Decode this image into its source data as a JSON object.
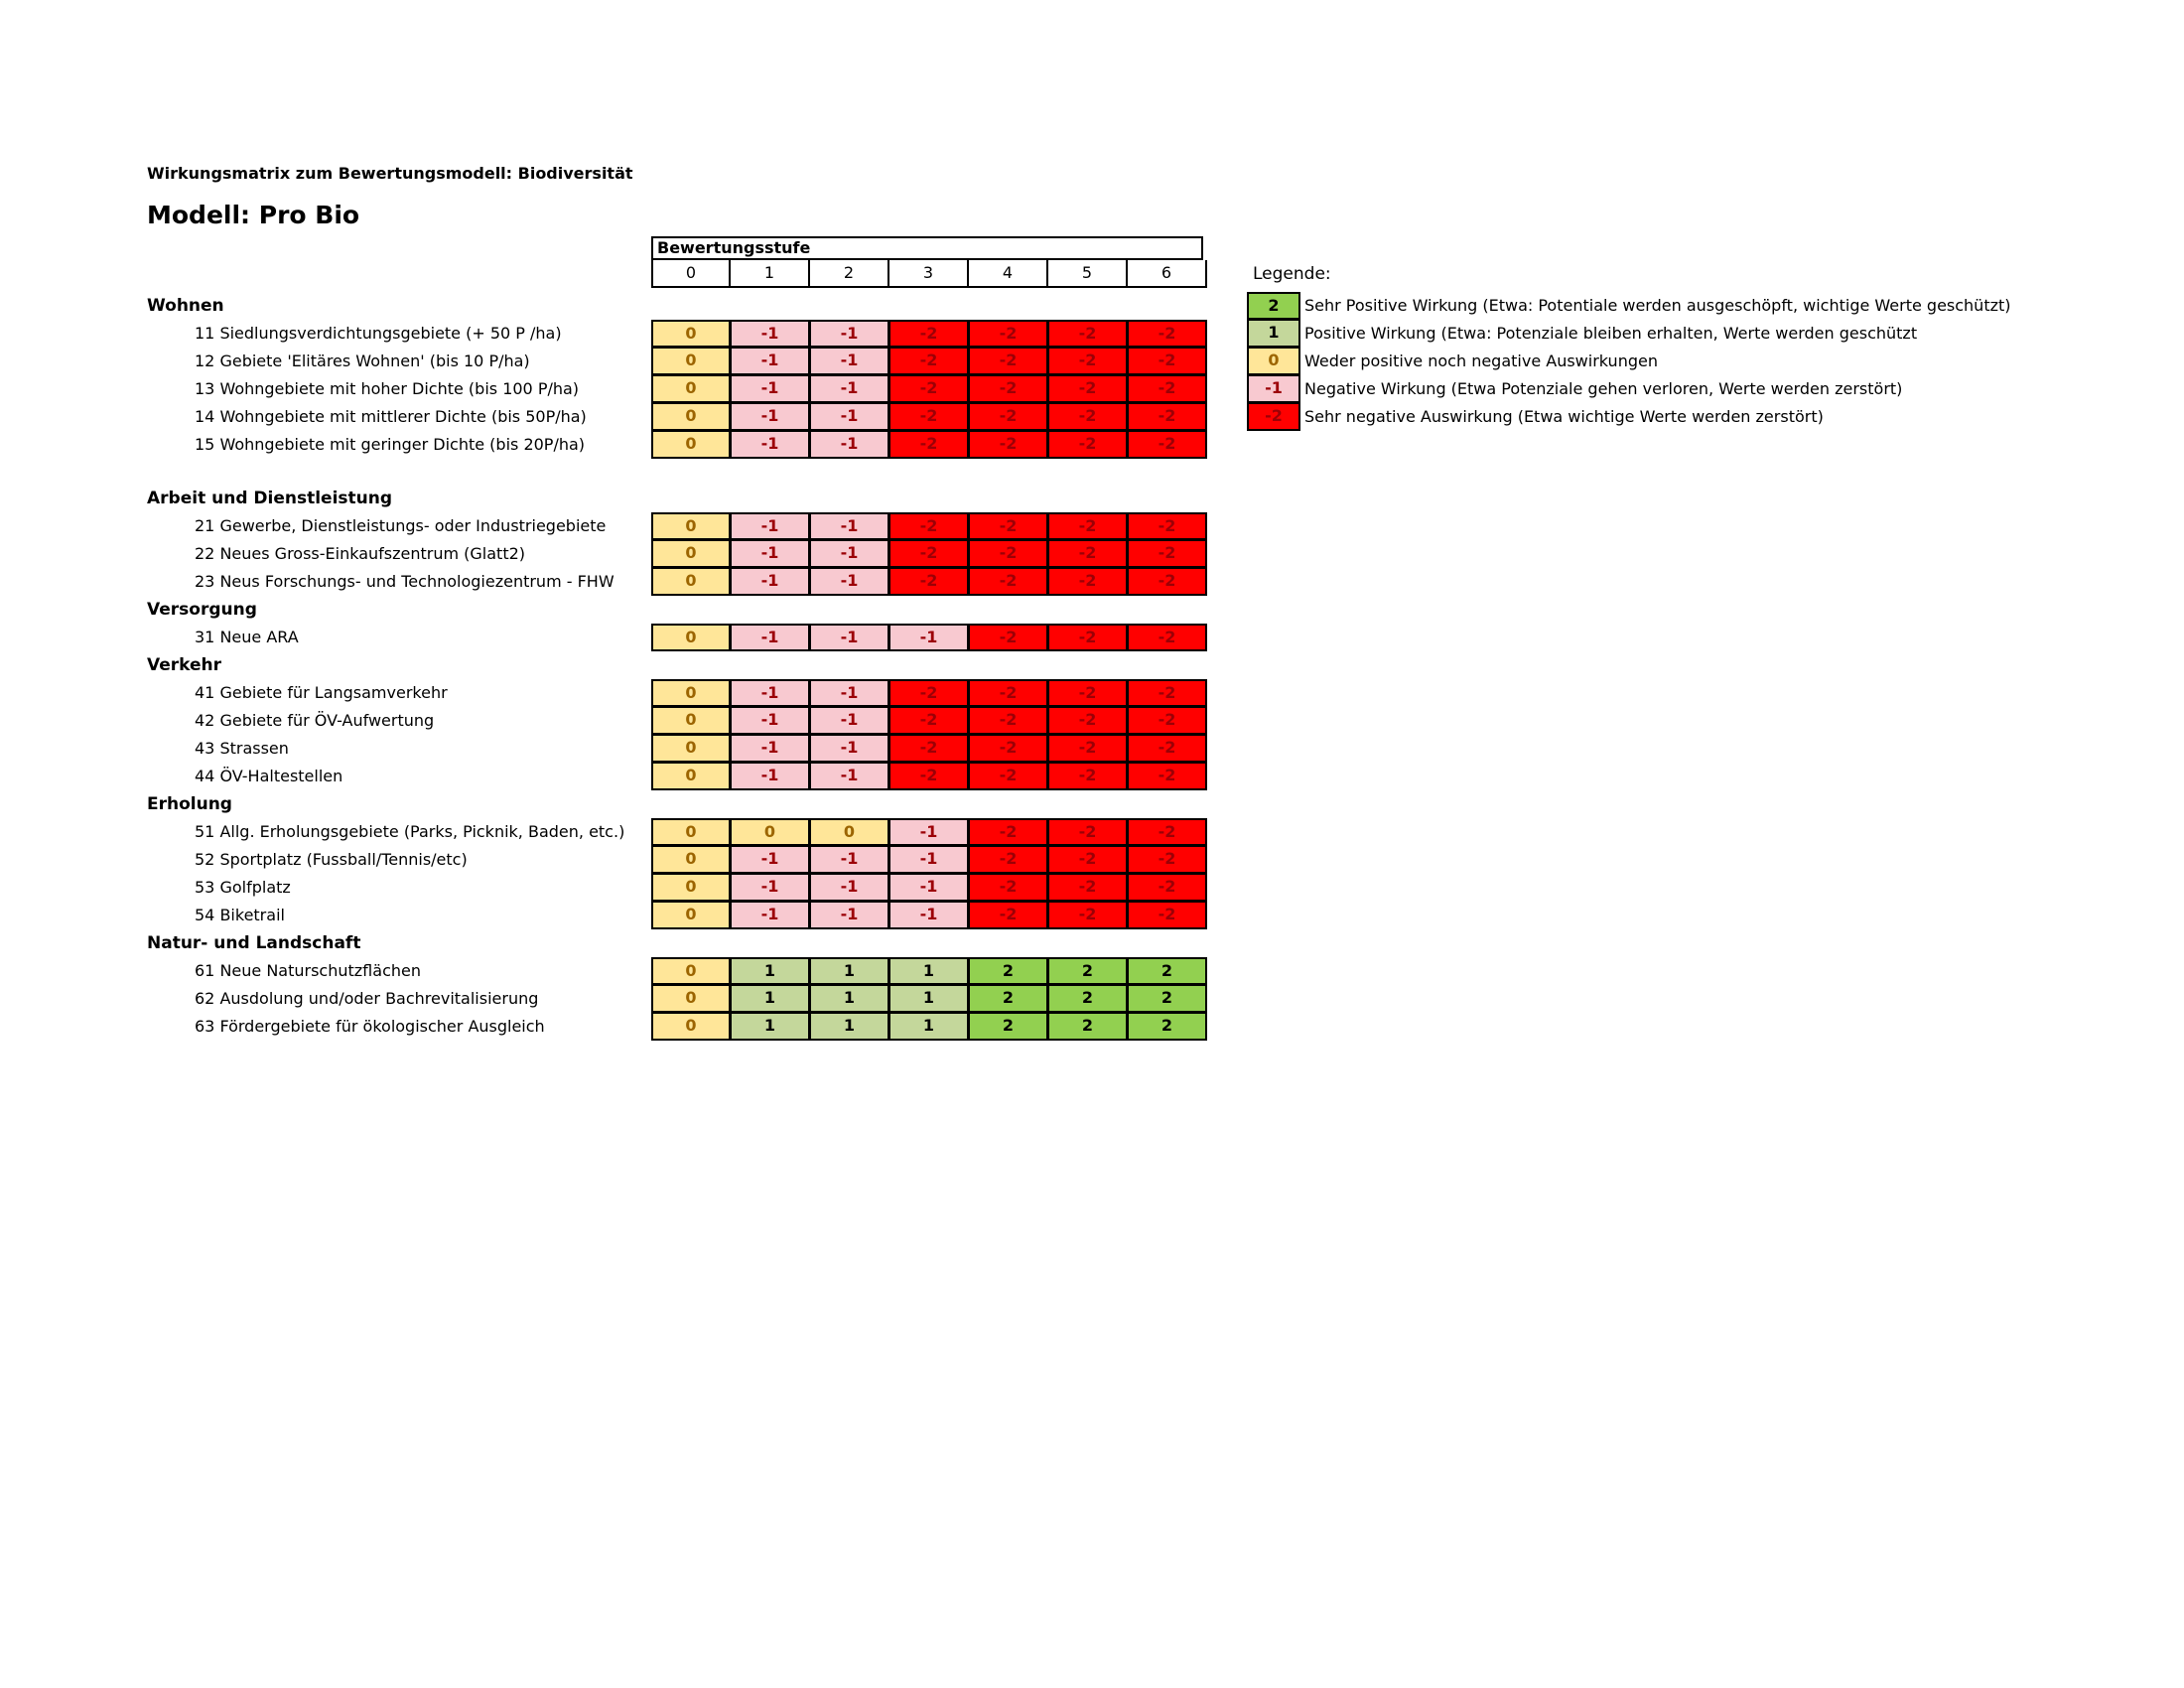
{
  "title": "Wirkungsmatrix zum Bewertungsmodell: Biodiversität",
  "model": "Modell: Pro Bio",
  "header_label": "Bewertungsstufe",
  "columns": [
    "0",
    "1",
    "2",
    "3",
    "4",
    "5",
    "6"
  ],
  "colors": {
    "2": "#92d050",
    "1": "#c4d79b",
    "0": "#ffe699",
    "-1": "#f8c9d0",
    "-2": "#ff0000",
    "text_2": "#000000",
    "text_1": "#000000",
    "text_0": "#9c6500",
    "text_-1": "#9c0006",
    "text_-2": "#9c0006"
  },
  "legend": {
    "title": "Legende:",
    "items": [
      {
        "value": "2",
        "text": "Sehr Positive Wirkung (Etwa: Potentiale werden ausgeschöpft, wichtige Werte geschützt)"
      },
      {
        "value": "1",
        "text": "Positive Wirkung (Etwa: Potenziale bleiben erhalten, Werte werden geschützt"
      },
      {
        "value": "0",
        "text": "Weder positive noch negative Auswirkungen"
      },
      {
        "value": "-1",
        "text": "Negative Wirkung (Etwa Potenziale gehen verloren, Werte werden zerstört)"
      },
      {
        "value": "-2",
        "text": "Sehr negative Auswirkung (Etwa wichtige Werte werden zerstört)"
      }
    ]
  },
  "categories": [
    {
      "name": "Wohnen",
      "rows": [
        {
          "label": "11  Siedlungsverdichtungsgebiete (+ 50 P /ha)",
          "values": [
            "0",
            "-1",
            "-1",
            "-2",
            "-2",
            "-2",
            "-2"
          ]
        },
        {
          "label": "12  Gebiete 'Elitäres Wohnen' (bis 10 P/ha)",
          "values": [
            "0",
            "-1",
            "-1",
            "-2",
            "-2",
            "-2",
            "-2"
          ]
        },
        {
          "label": "13  Wohngebiete mit hoher Dichte (bis 100 P/ha)",
          "values": [
            "0",
            "-1",
            "-1",
            "-2",
            "-2",
            "-2",
            "-2"
          ]
        },
        {
          "label": "14  Wohngebiete mit mittlerer Dichte (bis 50P/ha)",
          "values": [
            "0",
            "-1",
            "-1",
            "-2",
            "-2",
            "-2",
            "-2"
          ]
        },
        {
          "label": "15  Wohngebiete mit geringer Dichte (bis 20P/ha)",
          "values": [
            "0",
            "-1",
            "-1",
            "-2",
            "-2",
            "-2",
            "-2"
          ]
        }
      ]
    },
    {
      "name": "Arbeit und Dienstleistung",
      "rows": [
        {
          "label": "21  Gewerbe, Dienstleistungs- oder Industriegebiete",
          "values": [
            "0",
            "-1",
            "-1",
            "-2",
            "-2",
            "-2",
            "-2"
          ]
        },
        {
          "label": "22  Neues Gross-Einkaufszentrum (Glatt2)",
          "values": [
            "0",
            "-1",
            "-1",
            "-2",
            "-2",
            "-2",
            "-2"
          ]
        },
        {
          "label": "23  Neus Forschungs- und Technologiezentrum - FHW",
          "values": [
            "0",
            "-1",
            "-1",
            "-2",
            "-2",
            "-2",
            "-2"
          ]
        }
      ]
    },
    {
      "name": "Versorgung",
      "rows": [
        {
          "label": "31  Neue ARA",
          "values": [
            "0",
            "-1",
            "-1",
            "-1",
            "-2",
            "-2",
            "-2"
          ]
        }
      ]
    },
    {
      "name": "Verkehr",
      "rows": [
        {
          "label": "41  Gebiete für Langsamverkehr",
          "values": [
            "0",
            "-1",
            "-1",
            "-2",
            "-2",
            "-2",
            "-2"
          ]
        },
        {
          "label": "42  Gebiete für ÖV-Aufwertung",
          "values": [
            "0",
            "-1",
            "-1",
            "-2",
            "-2",
            "-2",
            "-2"
          ]
        },
        {
          "label": "43  Strassen",
          "values": [
            "0",
            "-1",
            "-1",
            "-2",
            "-2",
            "-2",
            "-2"
          ]
        },
        {
          "label": "44  ÖV-Haltestellen",
          "values": [
            "0",
            "-1",
            "-1",
            "-2",
            "-2",
            "-2",
            "-2"
          ]
        }
      ]
    },
    {
      "name": "Erholung",
      "rows": [
        {
          "label": "51  Allg. Erholungsgebiete (Parks, Picknik, Baden, etc.)",
          "values": [
            "0",
            "0",
            "0",
            "-1",
            "-2",
            "-2",
            "-2"
          ]
        },
        {
          "label": "52  Sportplatz (Fussball/Tennis/etc)",
          "values": [
            "0",
            "-1",
            "-1",
            "-1",
            "-2",
            "-2",
            "-2"
          ]
        },
        {
          "label": "53  Golfplatz",
          "values": [
            "0",
            "-1",
            "-1",
            "-1",
            "-2",
            "-2",
            "-2"
          ]
        },
        {
          "label": "54  Biketrail",
          "values": [
            "0",
            "-1",
            "-1",
            "-1",
            "-2",
            "-2",
            "-2"
          ]
        }
      ]
    },
    {
      "name": "Natur- und Landschaft",
      "rows": [
        {
          "label": "61  Neue Naturschutzflächen",
          "values": [
            "0",
            "1",
            "1",
            "1",
            "2",
            "2",
            "2"
          ]
        },
        {
          "label": "62  Ausdolung und/oder Bachrevitalisierung",
          "values": [
            "0",
            "1",
            "1",
            "1",
            "2",
            "2",
            "2"
          ]
        },
        {
          "label": "63  Fördergebiete für ökologischer Ausgleich",
          "values": [
            "0",
            "1",
            "1",
            "1",
            "2",
            "2",
            "2"
          ]
        }
      ]
    }
  ]
}
